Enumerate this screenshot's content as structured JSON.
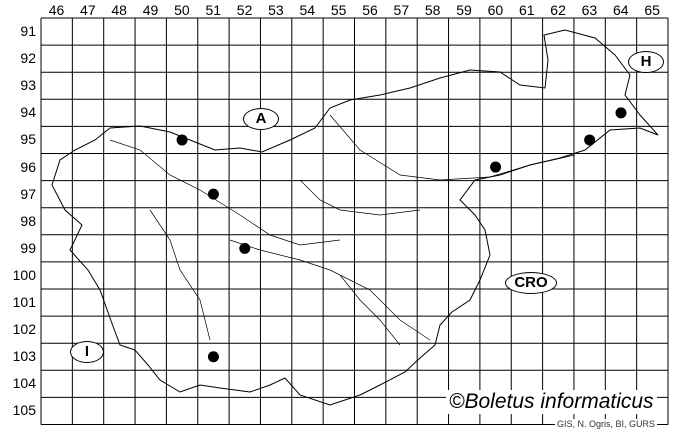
{
  "grid": {
    "columns": [
      "46",
      "47",
      "48",
      "49",
      "50",
      "51",
      "52",
      "53",
      "54",
      "55",
      "56",
      "57",
      "58",
      "59",
      "60",
      "61",
      "62",
      "63",
      "64",
      "65"
    ],
    "rows": [
      "91",
      "92",
      "93",
      "94",
      "95",
      "96",
      "97",
      "98",
      "99",
      "100",
      "101",
      "102",
      "103",
      "104",
      "105"
    ]
  },
  "countries": [
    {
      "label": "A"
    },
    {
      "label": "H"
    },
    {
      "label": "CRO"
    },
    {
      "label": "I"
    }
  ],
  "records": [
    {
      "col": "50",
      "row": "95"
    },
    {
      "col": "51",
      "row": "97"
    },
    {
      "col": "52",
      "row": "99"
    },
    {
      "col": "51",
      "row": "103"
    },
    {
      "col": "60",
      "row": "96"
    },
    {
      "col": "63",
      "row": "95"
    },
    {
      "col": "64",
      "row": "94"
    }
  ],
  "title": "©Boletus informaticus",
  "credit": "GIS, N. Ogris, BI, GURS",
  "colors": {
    "lines": "#000000",
    "dots": "#000000",
    "background": "#ffffff"
  }
}
